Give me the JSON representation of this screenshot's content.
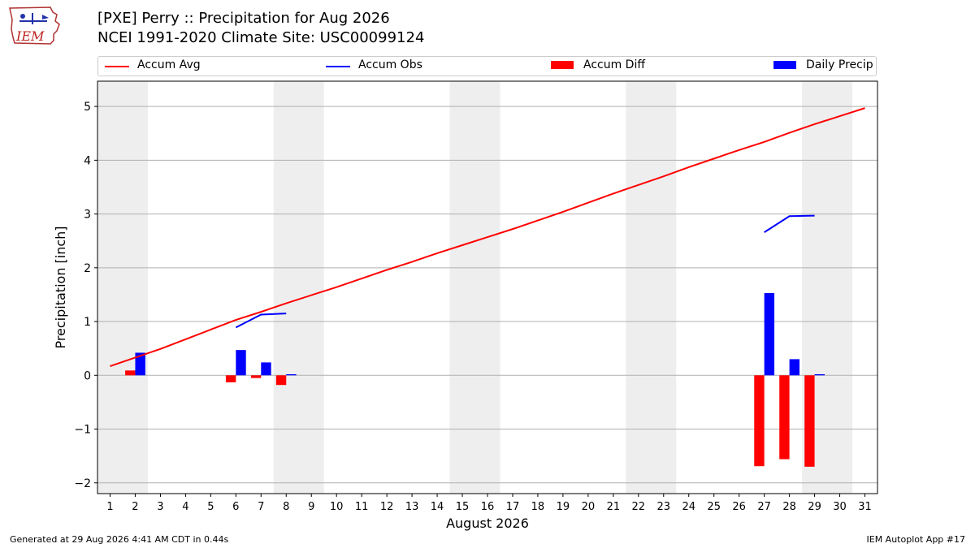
{
  "header": {
    "title_line1": "[PXE] Perry :: Precipitation for Aug 2026",
    "title_line2": "NCEI 1991-2020 Climate Site: USC00099124",
    "logo_text": "IEM"
  },
  "footer": {
    "left": "Generated at 29 Aug 2026 4:41 AM CDT in 0.44s",
    "right": "IEM Autoplot App #17"
  },
  "chart_data": {
    "type": "bar",
    "title": "[PXE] Perry :: Precipitation for Aug 2026",
    "subtitle": "NCEI 1991-2020 Climate Site: USC00099124",
    "xlabel": "August 2026",
    "ylabel": "Precipitation [inch]",
    "xlim": [
      0.5,
      31.5
    ],
    "ylim": [
      -2.2,
      5.47
    ],
    "xticks": [
      1,
      2,
      3,
      4,
      5,
      6,
      7,
      8,
      9,
      10,
      11,
      12,
      13,
      14,
      15,
      16,
      17,
      18,
      19,
      20,
      21,
      22,
      23,
      24,
      25,
      26,
      27,
      28,
      29,
      30,
      31
    ],
    "yticks": [
      -2,
      -1,
      0,
      1,
      2,
      3,
      4,
      5
    ],
    "ytick_labels": [
      "−2",
      "−1",
      "0",
      "1",
      "2",
      "3",
      "4",
      "5"
    ],
    "grid": "horizontal",
    "legend_placement": "top",
    "weekend_shading": [
      [
        0.5,
        2.5
      ],
      [
        7.5,
        9.5
      ],
      [
        14.5,
        16.5
      ],
      [
        21.5,
        23.5
      ],
      [
        28.5,
        30.5
      ]
    ],
    "colors": {
      "accum_avg": "#ff0000",
      "accum_obs": "#0000ff",
      "accum_diff": "#ff0000",
      "daily_precip": "#0000ff",
      "shading": "#eeeeee",
      "grid": "#b0b0b0"
    },
    "legend": [
      "Accum Avg",
      "Accum Obs",
      "Accum Diff",
      "Daily Precip"
    ],
    "series": [
      {
        "name": "Accum Avg",
        "kind": "line",
        "x": [
          1,
          2,
          3,
          4,
          5,
          6,
          7,
          8,
          9,
          10,
          11,
          12,
          13,
          14,
          15,
          16,
          17,
          18,
          19,
          20,
          21,
          22,
          23,
          24,
          25,
          26,
          27,
          28,
          29,
          30,
          31
        ],
        "values": [
          0.17,
          0.33,
          0.49,
          0.67,
          0.85,
          1.03,
          1.18,
          1.34,
          1.49,
          1.64,
          1.8,
          1.96,
          2.11,
          2.27,
          2.42,
          2.57,
          2.72,
          2.88,
          3.04,
          3.21,
          3.38,
          3.54,
          3.7,
          3.87,
          4.03,
          4.19,
          4.34,
          4.51,
          4.67,
          4.82,
          4.97
        ]
      },
      {
        "name": "Accum Obs",
        "kind": "line",
        "segments": [
          {
            "x": [
              6,
              7,
              8
            ],
            "values": [
              0.89,
              1.13,
              1.15
            ]
          },
          {
            "x": [
              27,
              28,
              29
            ],
            "values": [
              2.66,
              2.96,
              2.97
            ]
          }
        ]
      },
      {
        "name": "Accum Diff",
        "kind": "bar",
        "x": [
          2,
          6,
          7,
          8,
          27,
          28,
          29
        ],
        "values": [
          0.09,
          -0.13,
          -0.05,
          -0.18,
          -1.69,
          -1.56,
          -1.7
        ]
      },
      {
        "name": "Daily Precip",
        "kind": "bar",
        "x": [
          2,
          6,
          7,
          8,
          27,
          28,
          29
        ],
        "values": [
          0.42,
          0.47,
          0.24,
          0.02,
          1.53,
          0.3,
          0.02
        ]
      }
    ]
  }
}
